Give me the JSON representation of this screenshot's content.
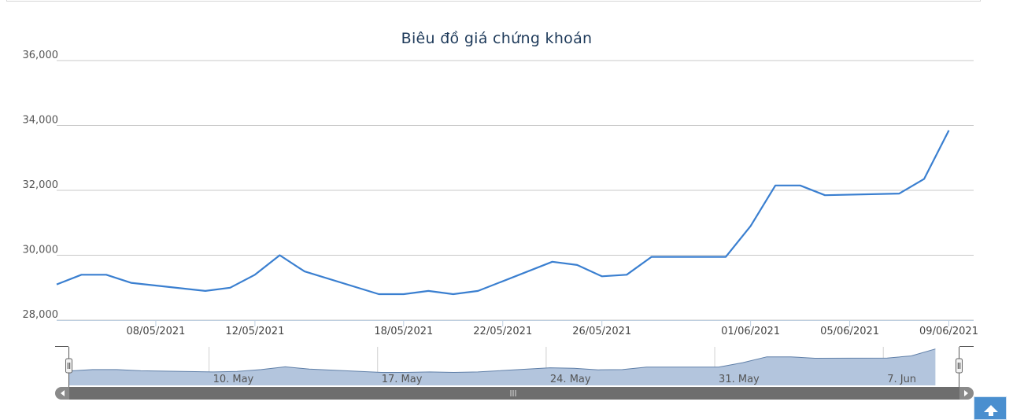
{
  "chart_data": {
    "type": "line",
    "title": "Biêu đồ giá chứng khoán",
    "xlabel": "",
    "ylabel": "",
    "ylim": [
      28000,
      36000
    ],
    "yticks": [
      "36,000",
      "34,000",
      "32,000",
      "30,000",
      "28,000"
    ],
    "ytick_values": [
      36000,
      34000,
      32000,
      30000,
      28000
    ],
    "xtick_labels": [
      "08/05/2021",
      "12/05/2021",
      "18/05/2021",
      "22/05/2021",
      "26/05/2021",
      "01/06/2021",
      "05/06/2021",
      "09/06/2021"
    ],
    "xlim": [
      "2021-05-04",
      "2021-06-10"
    ],
    "grid": true,
    "legend": "none",
    "series": [
      {
        "color": "#3a7fd0",
        "points": [
          [
            "2021-05-04",
            29100
          ],
          [
            "2021-05-05",
            29400
          ],
          [
            "2021-05-06",
            29400
          ],
          [
            "2021-05-07",
            29150
          ],
          [
            "2021-05-10",
            28900
          ],
          [
            "2021-05-11",
            29000
          ],
          [
            "2021-05-12",
            29400
          ],
          [
            "2021-05-13",
            30000
          ],
          [
            "2021-05-14",
            29500
          ],
          [
            "2021-05-17",
            28800
          ],
          [
            "2021-05-18",
            28800
          ],
          [
            "2021-05-19",
            28900
          ],
          [
            "2021-05-20",
            28800
          ],
          [
            "2021-05-21",
            28900
          ],
          [
            "2021-05-24",
            29800
          ],
          [
            "2021-05-25",
            29700
          ],
          [
            "2021-05-26",
            29350
          ],
          [
            "2021-05-27",
            29400
          ],
          [
            "2021-05-28",
            29950
          ],
          [
            "2021-05-31",
            29950
          ],
          [
            "2021-06-01",
            30900
          ],
          [
            "2021-06-02",
            32150
          ],
          [
            "2021-06-03",
            32150
          ],
          [
            "2021-06-04",
            31850
          ],
          [
            "2021-06-07",
            31900
          ],
          [
            "2021-06-08",
            32350
          ],
          [
            "2021-06-09",
            33850
          ]
        ]
      }
    ],
    "navigator": {
      "labels": [
        "10. May",
        "17. May",
        "24. May",
        "31. May",
        "7. Jun"
      ],
      "fill_color": "#b3c5dd",
      "line_color": "#5f7fa8",
      "scrollbar_color": "#8a8a8a"
    }
  }
}
